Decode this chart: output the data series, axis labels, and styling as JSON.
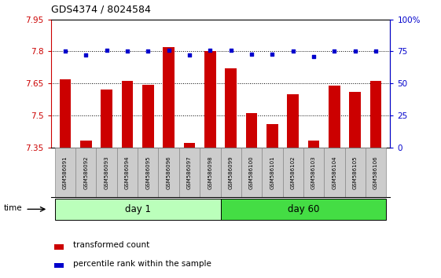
{
  "title": "GDS4374 / 8024584",
  "samples": [
    "GSM586091",
    "GSM586092",
    "GSM586093",
    "GSM586094",
    "GSM586095",
    "GSM586096",
    "GSM586097",
    "GSM586098",
    "GSM586099",
    "GSM586100",
    "GSM586101",
    "GSM586102",
    "GSM586103",
    "GSM586104",
    "GSM586105",
    "GSM586106"
  ],
  "bar_values": [
    7.67,
    7.38,
    7.62,
    7.66,
    7.645,
    7.82,
    7.37,
    7.8,
    7.72,
    7.51,
    7.46,
    7.6,
    7.38,
    7.64,
    7.61,
    7.66
  ],
  "dot_values": [
    75,
    72,
    76,
    75,
    75,
    76,
    72,
    76,
    76,
    73,
    73,
    75,
    71,
    75,
    75,
    75
  ],
  "ylim_left": [
    7.35,
    7.95
  ],
  "ylim_right": [
    0,
    100
  ],
  "yticks_left": [
    7.35,
    7.5,
    7.65,
    7.8,
    7.95
  ],
  "yticks_right": [
    0,
    25,
    50,
    75,
    100
  ],
  "ytick_labels_left": [
    "7.35",
    "7.5",
    "7.65",
    "7.8",
    "7.95"
  ],
  "ytick_labels_right": [
    "0",
    "25",
    "50",
    "75",
    "100%"
  ],
  "bar_color": "#cc0000",
  "dot_color": "#0000cc",
  "bar_bottom": 7.35,
  "day1_samples": 8,
  "day60_samples": 8,
  "day1_label": "day 1",
  "day60_label": "day 60",
  "group_color_day1": "#bbffbb",
  "group_color_day60": "#44dd44",
  "xlabel_label": "time",
  "legend_bar_label": "transformed count",
  "legend_dot_label": "percentile rank within the sample",
  "dotted_line_y": [
    7.5,
    7.65,
    7.8
  ],
  "tick_label_color_left": "#cc0000",
  "tick_label_color_right": "#0000cc",
  "sample_bg": "#cccccc"
}
